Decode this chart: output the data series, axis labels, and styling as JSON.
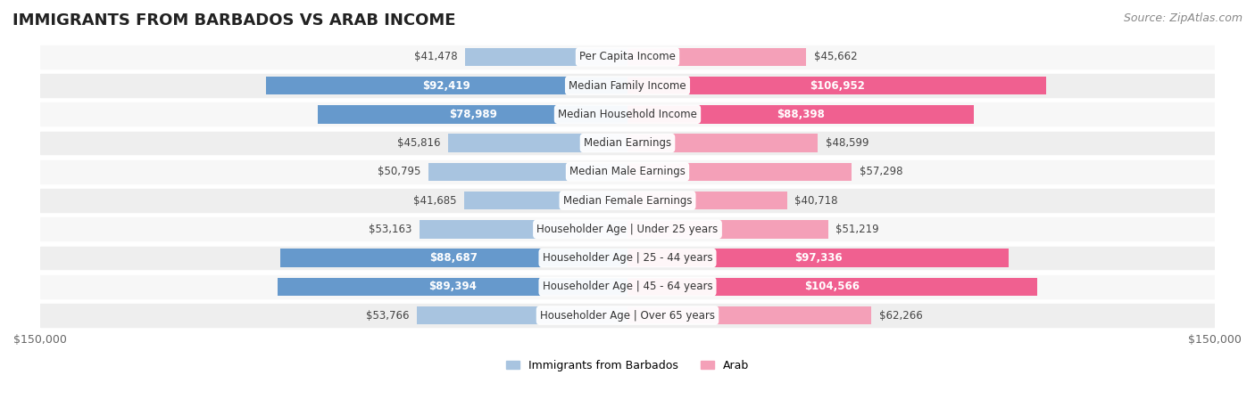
{
  "title": "IMMIGRANTS FROM BARBADOS VS ARAB INCOME",
  "source": "Source: ZipAtlas.com",
  "categories": [
    "Per Capita Income",
    "Median Family Income",
    "Median Household Income",
    "Median Earnings",
    "Median Male Earnings",
    "Median Female Earnings",
    "Householder Age | Under 25 years",
    "Householder Age | 25 - 44 years",
    "Householder Age | 45 - 64 years",
    "Householder Age | Over 65 years"
  ],
  "barbados_values": [
    41478,
    92419,
    78989,
    45816,
    50795,
    41685,
    53163,
    88687,
    89394,
    53766
  ],
  "arab_values": [
    45662,
    106952,
    88398,
    48599,
    57298,
    40718,
    51219,
    97336,
    104566,
    62266
  ],
  "barbados_color_light": "#a8c4e0",
  "barbados_color_dark": "#6699cc",
  "arab_color_light": "#f4a0b8",
  "arab_color_dark": "#f06090",
  "label_bg": "#ffffff",
  "row_bg_light": "#f7f7f7",
  "row_bg_dark": "#eeeeee",
  "max_value": 150000,
  "x_axis_label_left": "$150,000",
  "x_axis_label_right": "$150,000",
  "legend_barbados": "Immigrants from Barbados",
  "legend_arab": "Arab",
  "title_fontsize": 13,
  "source_fontsize": 9,
  "bar_label_fontsize": 8.5,
  "category_fontsize": 8.5,
  "axis_fontsize": 9
}
